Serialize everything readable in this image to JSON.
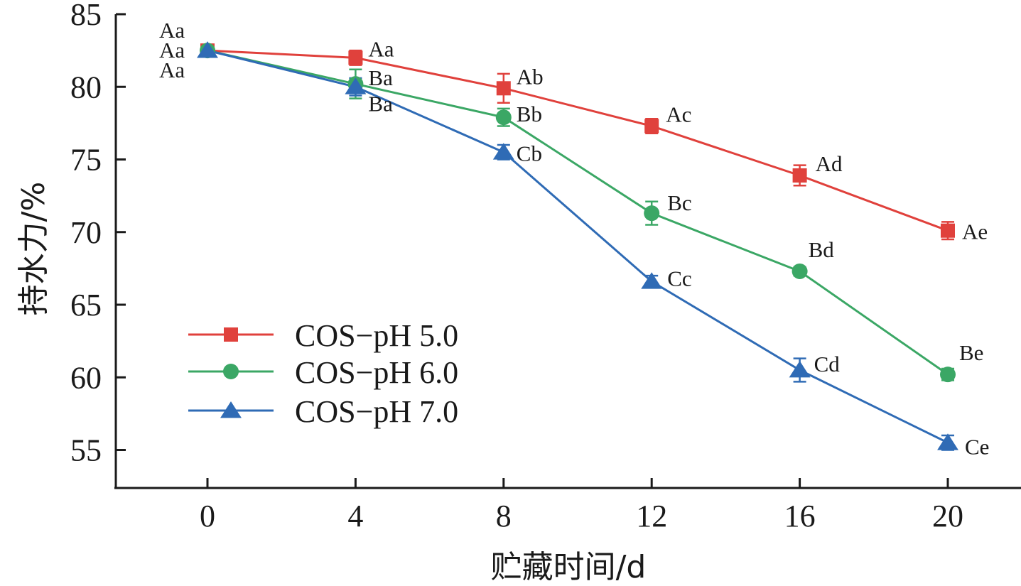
{
  "chart_data": {
    "type": "line",
    "xlabel": "贮藏时间/d",
    "ylabel": "持水力/%",
    "x": [
      0,
      4,
      8,
      12,
      16,
      20
    ],
    "x_ticks": [
      "0",
      "4",
      "8",
      "12",
      "16",
      "20"
    ],
    "xlim": [
      -2.5,
      22
    ],
    "ylim": [
      52.5,
      85
    ],
    "y_ticks": [
      "55",
      "60",
      "65",
      "70",
      "75",
      "80",
      "85"
    ],
    "grid": false,
    "legend_position": "bottom-left",
    "series": [
      {
        "name": "COS−pH 5.0",
        "color": "#e0413c",
        "marker": "square",
        "values": [
          82.5,
          82.0,
          79.9,
          77.3,
          73.9,
          70.1
        ],
        "errors": [
          0.3,
          0.5,
          1.0,
          0.5,
          0.7,
          0.6
        ],
        "labels": [
          "Aa",
          "Aa",
          "Ab",
          "Ac",
          "Ad",
          "Ae"
        ]
      },
      {
        "name": "COS−pH 6.0",
        "color": "#3ba765",
        "marker": "circle",
        "values": [
          82.5,
          80.2,
          77.9,
          71.3,
          67.3,
          60.2
        ],
        "errors": [
          0.3,
          1.0,
          0.6,
          0.8,
          0.3,
          0.4
        ],
        "labels": [
          "Aa",
          "Ba",
          "Bb",
          "Bc",
          "Bd",
          "Be"
        ]
      },
      {
        "name": "COS−pH 7.0",
        "color": "#2f6bb5",
        "marker": "triangle",
        "values": [
          82.5,
          80.0,
          75.5,
          66.6,
          60.5,
          55.5
        ],
        "errors": [
          0.4,
          0.6,
          0.5,
          0.4,
          0.8,
          0.5
        ],
        "labels": [
          "Aa",
          "Ba",
          "Cb",
          "Cc",
          "Cd",
          "Ce"
        ]
      }
    ]
  }
}
